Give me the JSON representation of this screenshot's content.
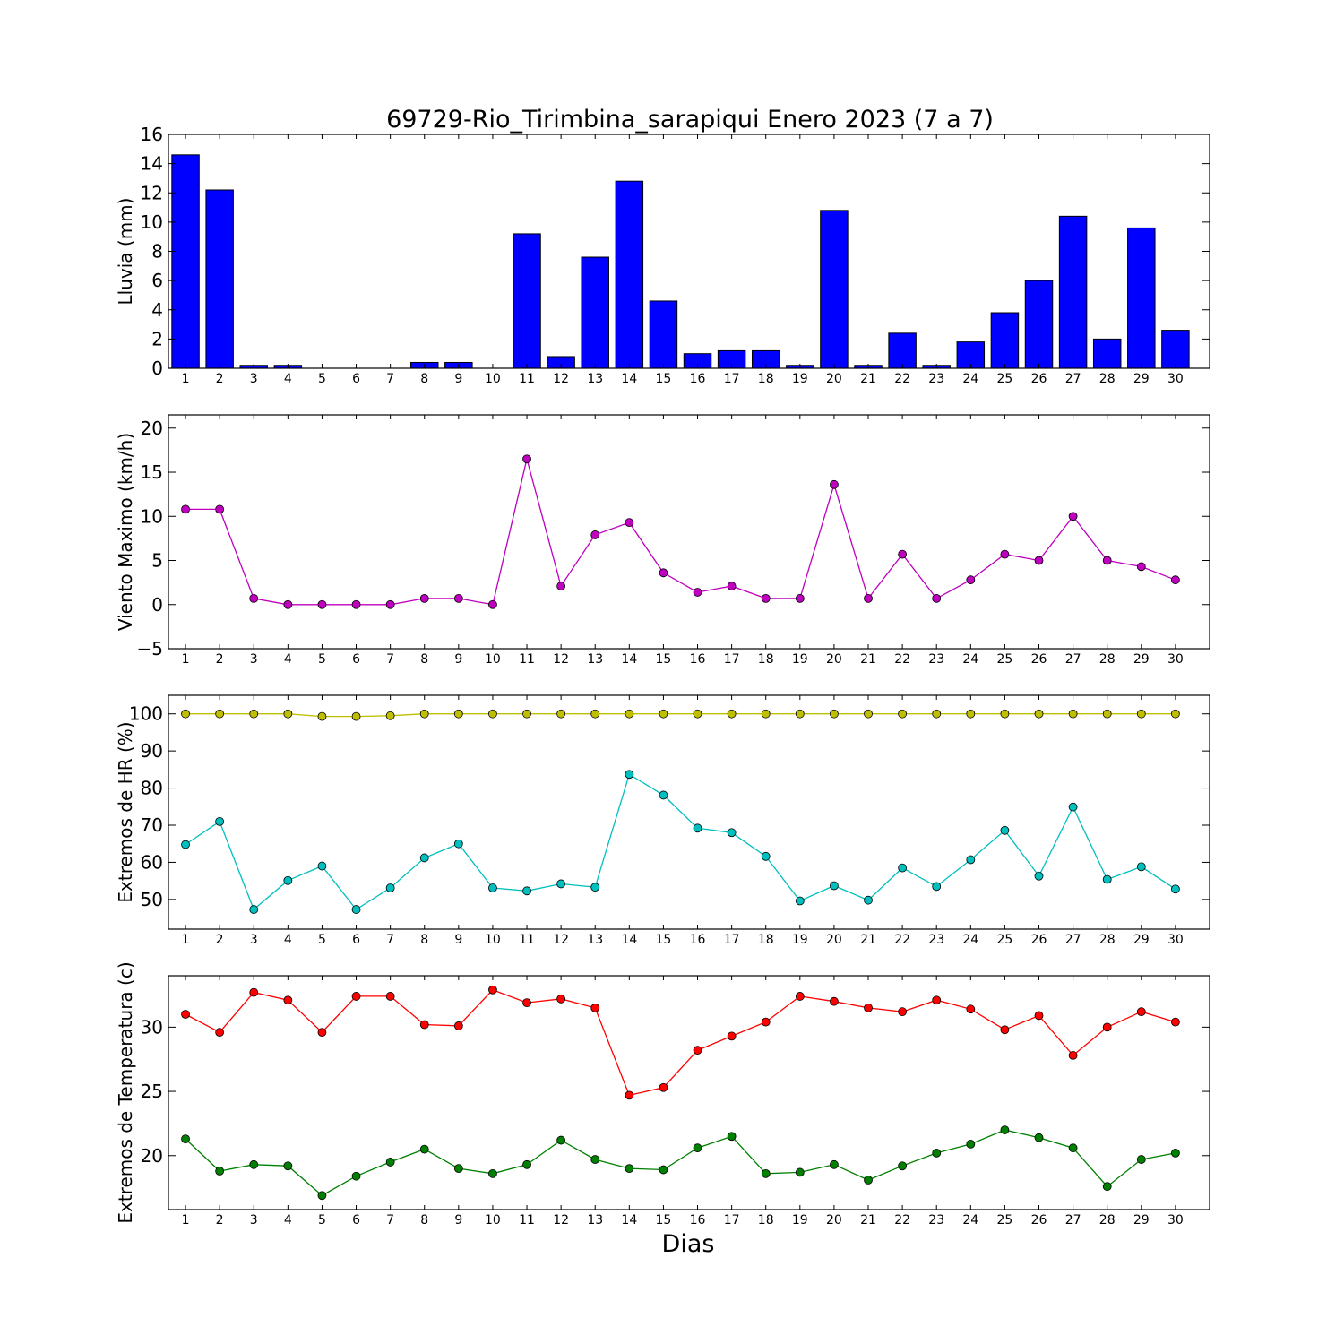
{
  "chart_data": [
    {
      "type": "bar",
      "title": "69729-Rio_Tirimbina_sarapiqui Enero 2023  (7 a 7)",
      "ylabel": "Lluvia (mm)",
      "xlabel": "",
      "categories": [
        "1",
        "2",
        "3",
        "4",
        "5",
        "6",
        "7",
        "8",
        "9",
        "10",
        "11",
        "12",
        "13",
        "14",
        "15",
        "16",
        "17",
        "18",
        "19",
        "20",
        "21",
        "22",
        "23",
        "24",
        "25",
        "26",
        "27",
        "28",
        "29",
        "30"
      ],
      "values": [
        14.6,
        12.2,
        0.2,
        0.2,
        0.0,
        0.0,
        0.0,
        0.4,
        0.4,
        0.0,
        9.2,
        0.8,
        7.6,
        12.8,
        4.6,
        1.0,
        1.2,
        1.2,
        0.2,
        10.8,
        0.2,
        2.4,
        0.2,
        1.8,
        3.8,
        6.0,
        10.4,
        2.0,
        9.6,
        2.6
      ],
      "ylim": [
        0,
        16
      ],
      "yticks": [
        "0",
        "2",
        "4",
        "6",
        "8",
        "10",
        "12",
        "14",
        "16"
      ],
      "colors": {
        "bar": "#0000ff"
      }
    },
    {
      "type": "line",
      "ylabel": "Viento Maximo (km/h)",
      "x": [
        1,
        2,
        3,
        4,
        5,
        6,
        7,
        8,
        9,
        10,
        11,
        12,
        13,
        14,
        15,
        16,
        17,
        18,
        19,
        20,
        21,
        22,
        23,
        24,
        25,
        26,
        27,
        28,
        29,
        30
      ],
      "series": [
        {
          "values": [
            10.8,
            10.8,
            0.7,
            0.0,
            0.0,
            0.0,
            0.0,
            0.7,
            0.7,
            0.0,
            16.5,
            2.1,
            7.9,
            9.3,
            3.6,
            1.4,
            2.1,
            0.7,
            0.7,
            13.6,
            0.7,
            5.7,
            0.7,
            2.8,
            5.7,
            5.0,
            10.0,
            5.0,
            4.3,
            2.8
          ],
          "color": "#bf00bf"
        }
      ],
      "ylim": [
        -5,
        21.5
      ],
      "yticks": [
        "−5",
        "0",
        "5",
        "10",
        "15",
        "20"
      ]
    },
    {
      "type": "line",
      "ylabel": "Extremos de HR (%)",
      "x": [
        1,
        2,
        3,
        4,
        5,
        6,
        7,
        8,
        9,
        10,
        11,
        12,
        13,
        14,
        15,
        16,
        17,
        18,
        19,
        20,
        21,
        22,
        23,
        24,
        25,
        26,
        27,
        28,
        29,
        30
      ],
      "series": [
        {
          "values": [
            100,
            100,
            100,
            100,
            99.3,
            99.3,
            99.5,
            100,
            100,
            100,
            100,
            100,
            100,
            100,
            100,
            100,
            100,
            100,
            100,
            100,
            100,
            100,
            100,
            100,
            100,
            100,
            100,
            100,
            100,
            100
          ],
          "color": "#bfbf00"
        },
        {
          "values": [
            64.8,
            71.0,
            47.3,
            55.1,
            59.0,
            47.3,
            53.1,
            61.2,
            65.0,
            53.1,
            52.3,
            54.2,
            53.3,
            83.7,
            78.1,
            69.2,
            68.0,
            61.6,
            49.6,
            53.7,
            49.8,
            58.5,
            53.5,
            60.7,
            68.6,
            56.3,
            74.9,
            55.4,
            58.8,
            52.8
          ],
          "color": "#00bfbf"
        }
      ],
      "ylim": [
        42,
        105
      ],
      "yticks": [
        "50",
        "60",
        "70",
        "80",
        "90",
        "100"
      ]
    },
    {
      "type": "line",
      "ylabel": "Extremos de Temperatura (c)",
      "xlabel": "Dias",
      "x": [
        1,
        2,
        3,
        4,
        5,
        6,
        7,
        8,
        9,
        10,
        11,
        12,
        13,
        14,
        15,
        16,
        17,
        18,
        19,
        20,
        21,
        22,
        23,
        24,
        25,
        26,
        27,
        28,
        29,
        30
      ],
      "series": [
        {
          "values": [
            31.0,
            29.6,
            32.7,
            32.1,
            29.6,
            32.4,
            32.4,
            30.2,
            30.1,
            32.9,
            31.9,
            32.2,
            31.5,
            24.7,
            25.3,
            28.2,
            29.3,
            30.4,
            32.4,
            32.0,
            31.5,
            31.2,
            32.1,
            31.4,
            29.8,
            30.9,
            27.8,
            30.0,
            31.2,
            30.4
          ],
          "color": "#ff0000"
        },
        {
          "values": [
            21.3,
            18.8,
            19.3,
            19.2,
            16.9,
            18.4,
            19.5,
            20.5,
            19.0,
            18.6,
            19.3,
            21.2,
            19.7,
            19.0,
            18.9,
            20.6,
            21.5,
            18.6,
            18.7,
            19.3,
            18.1,
            19.2,
            20.2,
            20.9,
            22.0,
            21.4,
            20.6,
            17.6,
            19.7,
            20.2
          ],
          "color": "#008000"
        }
      ],
      "ylim": [
        15.8,
        34.0
      ],
      "yticks": [
        "20",
        "25",
        "30"
      ]
    }
  ]
}
